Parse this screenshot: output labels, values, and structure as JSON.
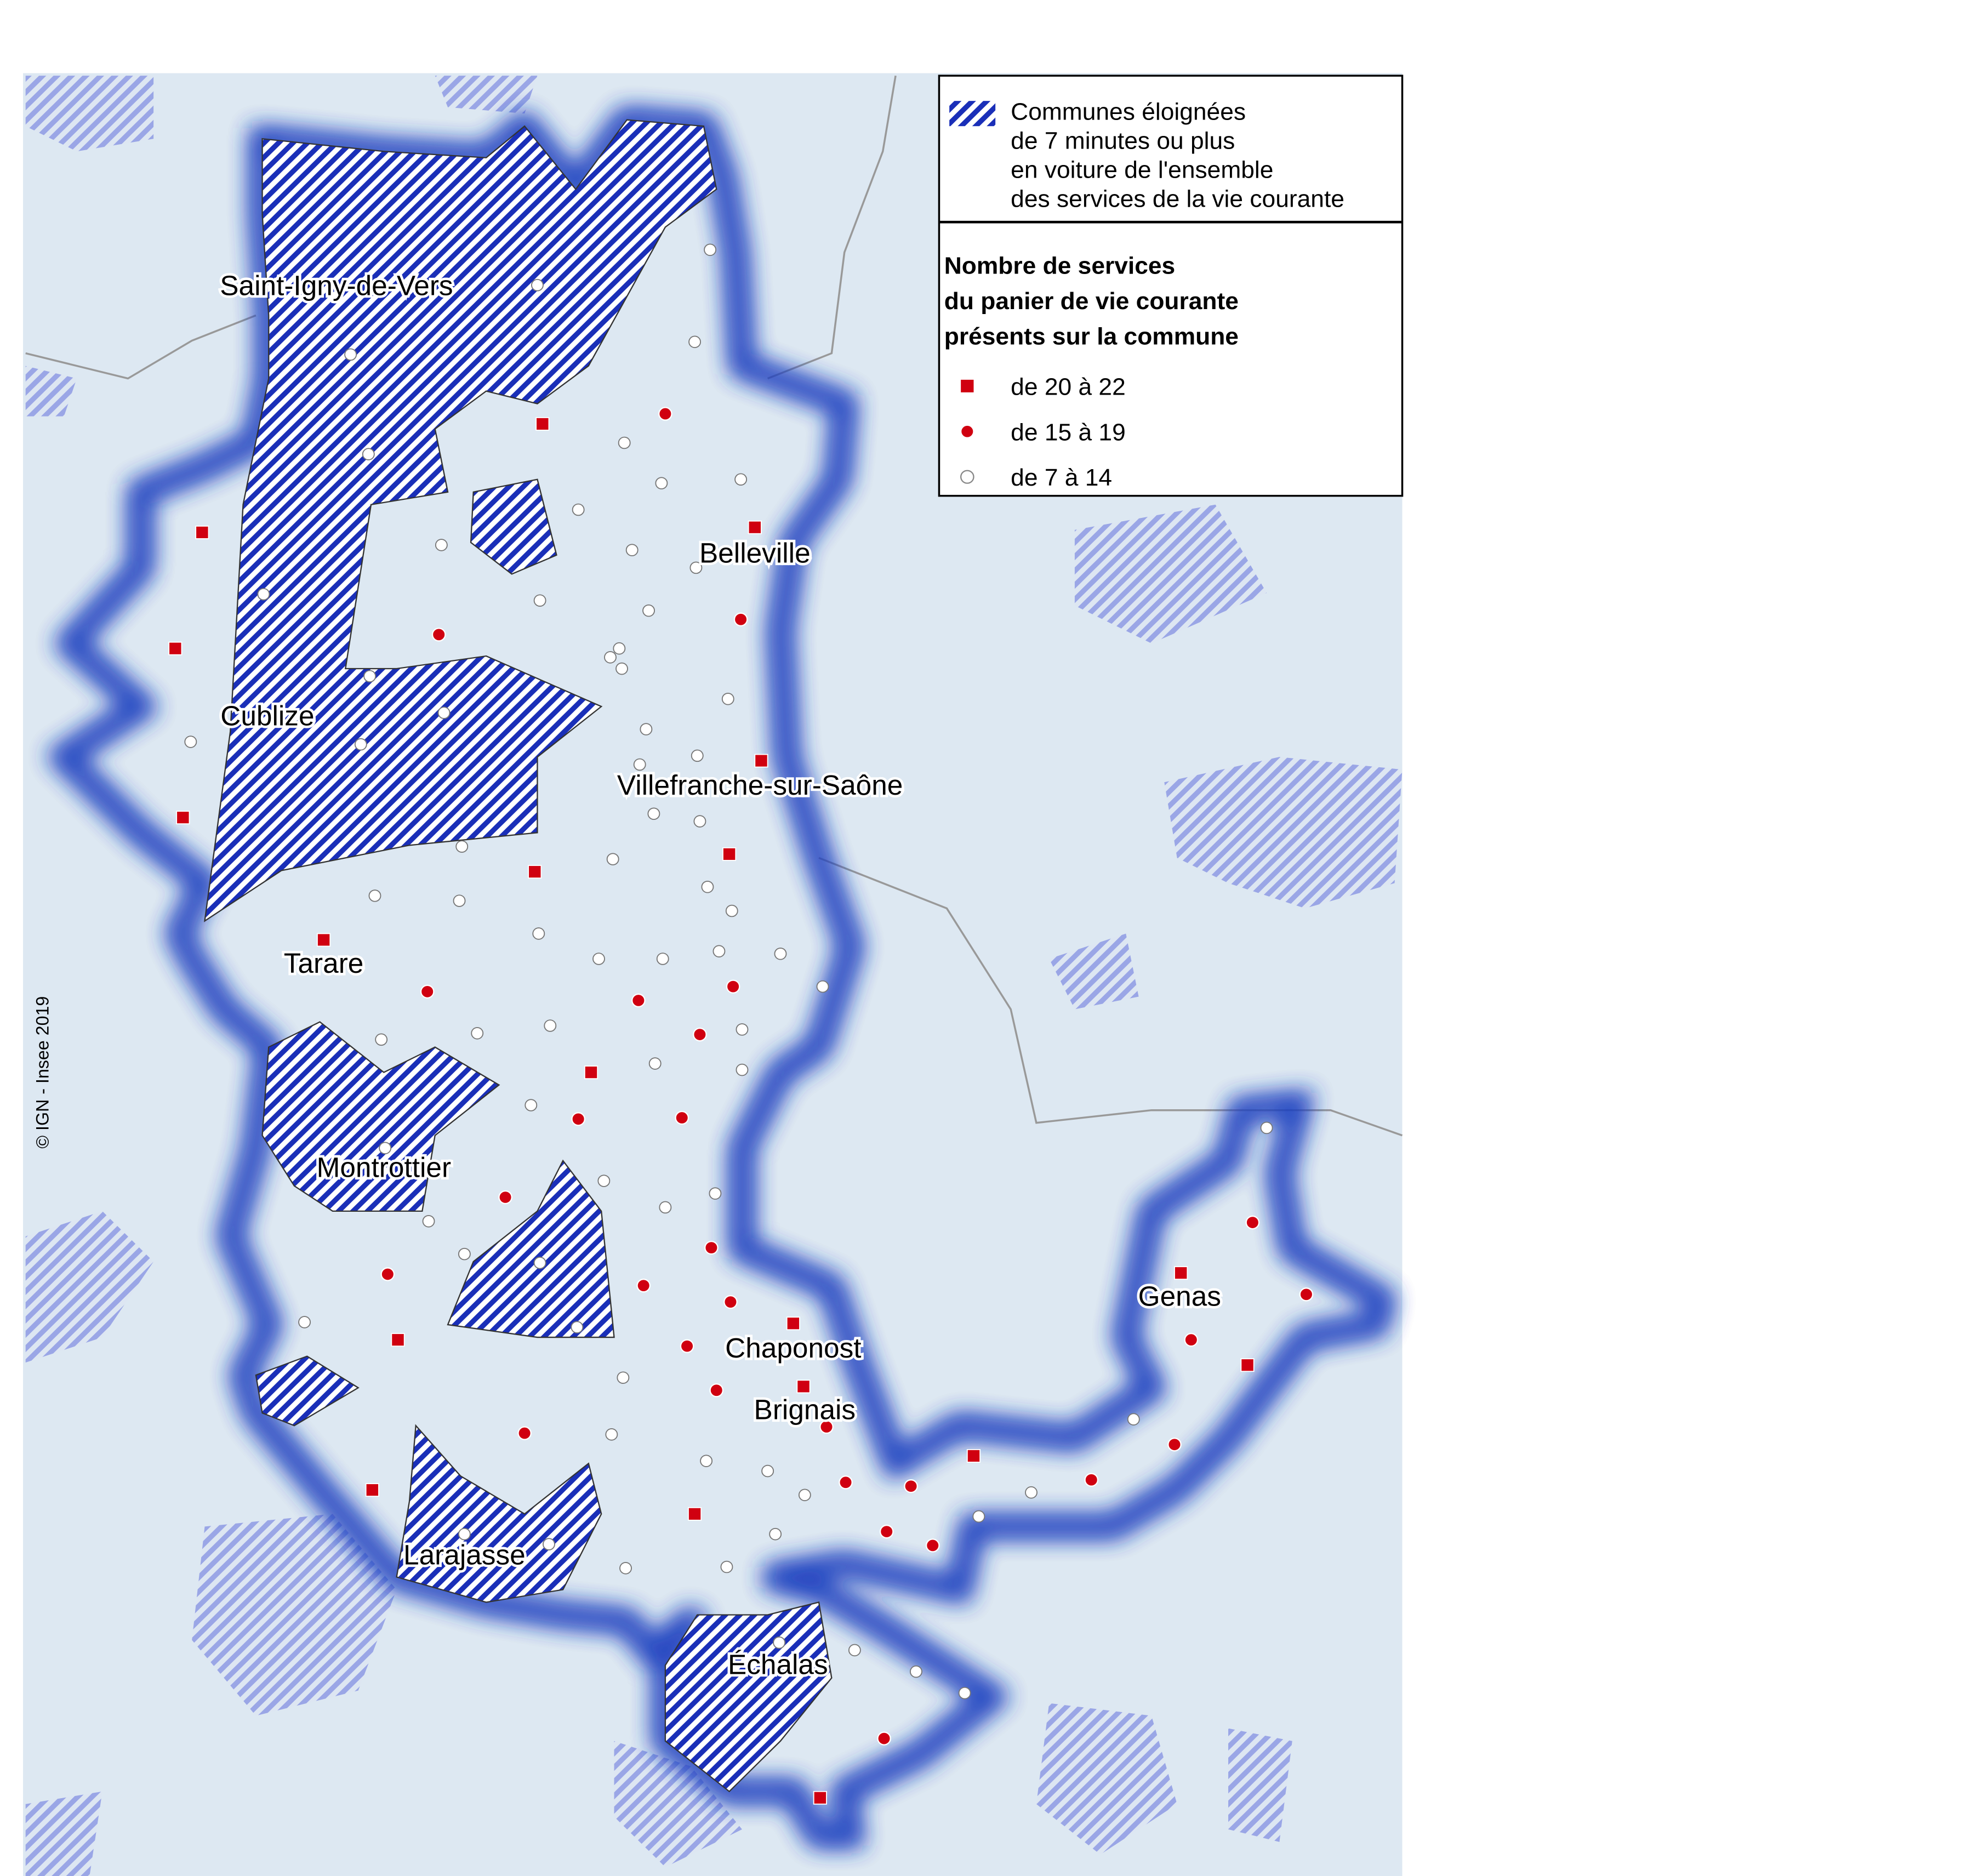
{
  "legend": {
    "hatched_lines": [
      "Communes éloignées",
      "de 7 minutes ou plus",
      "en voiture de l'ensemble",
      "des services de la vie courante"
    ],
    "title_lines": [
      "Nombre de services",
      "du panier de vie courante",
      "présents sur la commune"
    ],
    "items": [
      "de 20 à 22",
      "de 15 à 19",
      "de 7 à 14"
    ]
  },
  "places": [
    "Saint-Igny-de-Vers",
    "Belleville",
    "Cublize",
    "Villefranche-sur-Saône",
    "Tarare",
    "Montrottier",
    "Genas",
    "Chaponost",
    "Brignais",
    "Larajasse",
    "Échalas"
  ],
  "copyright": "© IGN - Insee 2019"
}
